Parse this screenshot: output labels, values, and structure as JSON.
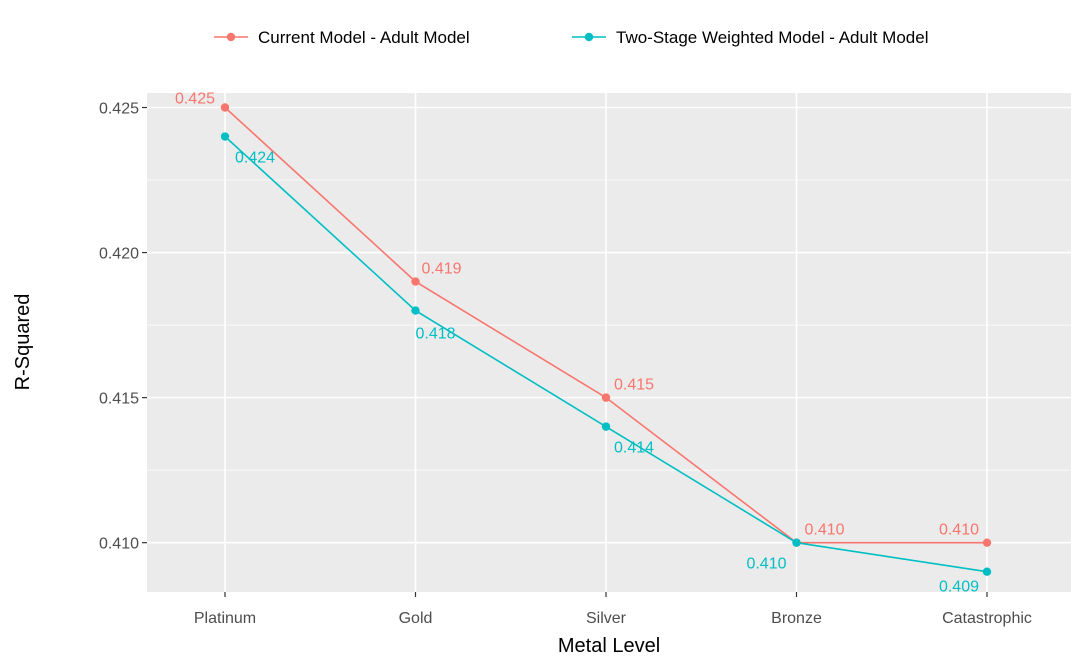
{
  "chart_data": {
    "type": "line",
    "title": "",
    "xlabel": "Metal Level",
    "ylabel": "R-Squared",
    "categories": [
      "Platinum",
      "Gold",
      "Silver",
      "Bronze",
      "Catastrophic"
    ],
    "ylim": [
      0.4083,
      0.4255
    ],
    "yticks": [
      "0.410",
      "0.415",
      "0.420",
      "0.425"
    ],
    "grid": true,
    "legend_position": "top",
    "series": [
      {
        "name": "Current Model - Adult Model",
        "color": "#F8766D",
        "values": [
          0.425,
          0.419,
          0.415,
          0.41,
          0.41
        ],
        "labels": [
          "0.425",
          "0.419",
          "0.415",
          "0.410",
          "0.410"
        ]
      },
      {
        "name": "Two-Stage Weighted Model - Adult Model",
        "color": "#00BFC4",
        "values": [
          0.424,
          0.418,
          0.414,
          0.41,
          0.409
        ],
        "labels": [
          "0.424",
          "0.418",
          "0.414",
          "0.410",
          "0.409"
        ]
      }
    ]
  }
}
